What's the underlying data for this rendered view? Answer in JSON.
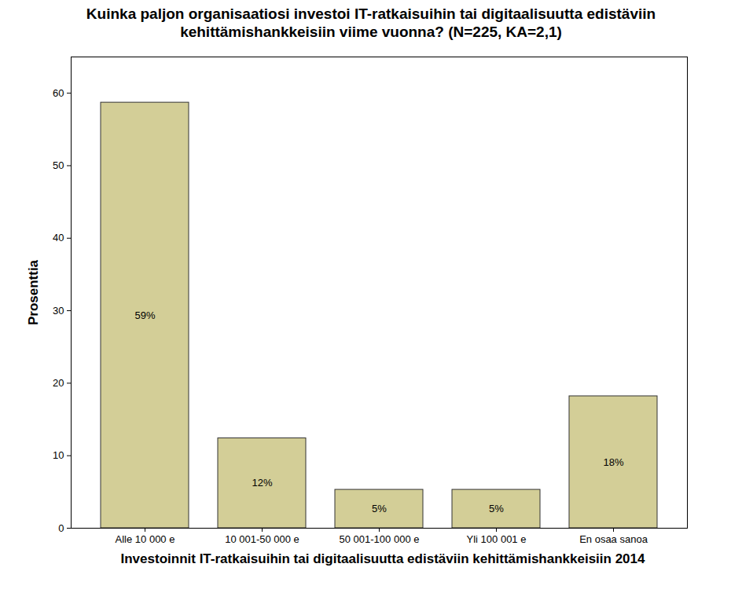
{
  "chart_data": {
    "type": "bar",
    "title": "Kuinka paljon organisaatiosi investoi IT-ratkaisuihin tai digitaalisuutta edistäviin kehittämishankkeisiin viime vuonna? (N=225, KA=2,1)",
    "x_label": "Investoinnit IT-ratkaisuihin tai digitaalisuutta edistäviin kehittämishankkeisiin 2014",
    "y_label": "Prosenttia",
    "categories": [
      "Alle 10 000 e",
      "10 001-50 000 e",
      "50 001-100 000 e",
      "Yli 100 001 e",
      "En osaa sanoa"
    ],
    "values": [
      58.7,
      12.4,
      5.3,
      5.3,
      18.2
    ],
    "value_labels": [
      "59%",
      "12%",
      "5%",
      "5%",
      "18%"
    ],
    "data_labels": true,
    "color": "#d3ce97",
    "ylim": [
      0,
      65
    ],
    "yticks": [
      0,
      10,
      20,
      30,
      40,
      50,
      60
    ],
    "grid": false
  }
}
